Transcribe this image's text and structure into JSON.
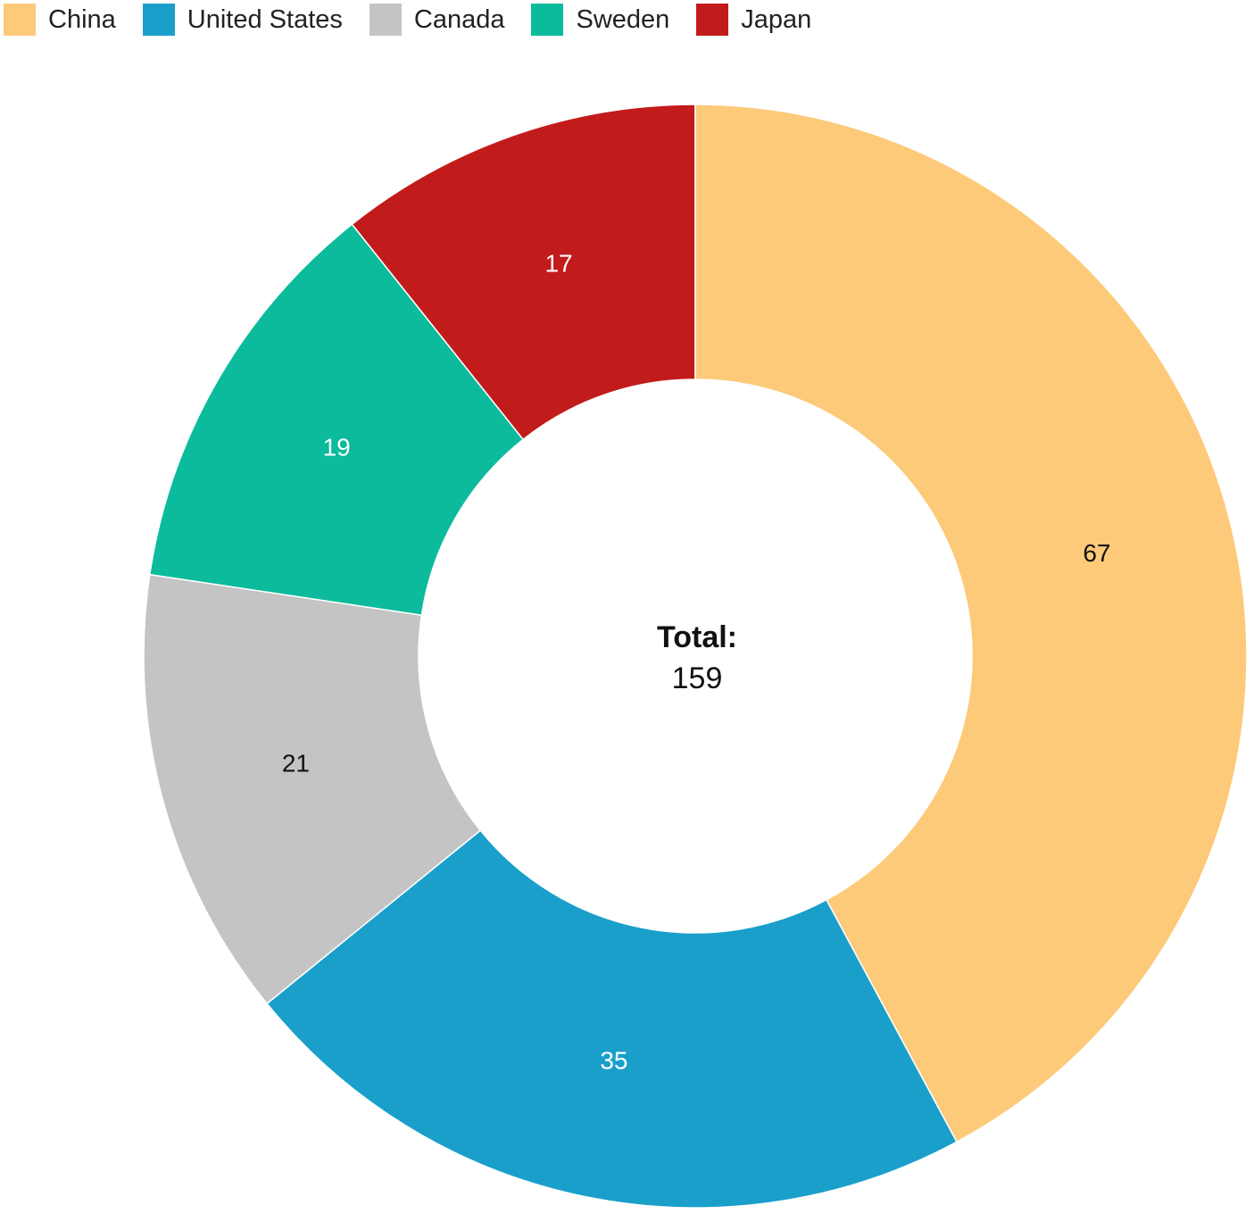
{
  "chart_data": {
    "type": "donut",
    "categories": [
      "China",
      "United States",
      "Canada",
      "Sweden",
      "Japan"
    ],
    "values": [
      67,
      35,
      21,
      19,
      17
    ],
    "colors": [
      "#fdca7a",
      "#1a9fcb",
      "#c4c4c4",
      "#0bbb9c",
      "#c21b1b"
    ],
    "center_label": "Total:",
    "total": 159,
    "legend": "top-left"
  }
}
